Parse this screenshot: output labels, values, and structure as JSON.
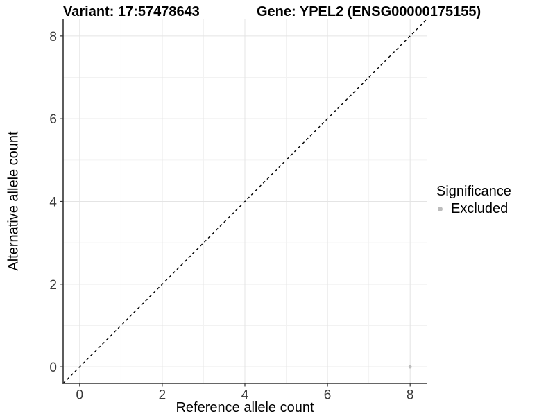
{
  "titles": {
    "left": "Variant: 17:57478643",
    "right": "Gene: YPEL2 (ENSG00000175155)"
  },
  "axes": {
    "x_label": "Reference allele count",
    "y_label": "Alternative allele count"
  },
  "legend": {
    "title": "Significance",
    "items": [
      {
        "label": "Excluded",
        "color": "#bdbdbd"
      }
    ]
  },
  "colors": {
    "grid_major": "#e4e4e4",
    "grid_minor": "#f2f2f2",
    "axis_line": "#333333",
    "tick_mark": "#333333",
    "tick_label": "#383838",
    "background": "#ffffff"
  },
  "chart_data": {
    "type": "scatter",
    "title": "Variant: 17:57478643  |  Gene: YPEL2 (ENSG00000175155)",
    "xlabel": "Reference allele count",
    "ylabel": "Alternative allele count",
    "xlim": [
      -0.4,
      8.4
    ],
    "ylim": [
      -0.4,
      8.4
    ],
    "x_ticks": [
      0,
      2,
      4,
      6,
      8
    ],
    "y_ticks": [
      0,
      2,
      4,
      6,
      8
    ],
    "x_minor_ticks": [
      1,
      3,
      5,
      7
    ],
    "y_minor_ticks": [
      1,
      3,
      5,
      7
    ],
    "grid": "major+minor",
    "legend_position": "right",
    "reference_line": {
      "kind": "identity",
      "color": "#000000",
      "dash": [
        4,
        4
      ],
      "width": 1.4
    },
    "series": [
      {
        "name": "Excluded",
        "color": "#bdbdbd",
        "point_radius": 2.4,
        "points": [
          {
            "x": 8,
            "y": 0
          }
        ]
      }
    ]
  }
}
